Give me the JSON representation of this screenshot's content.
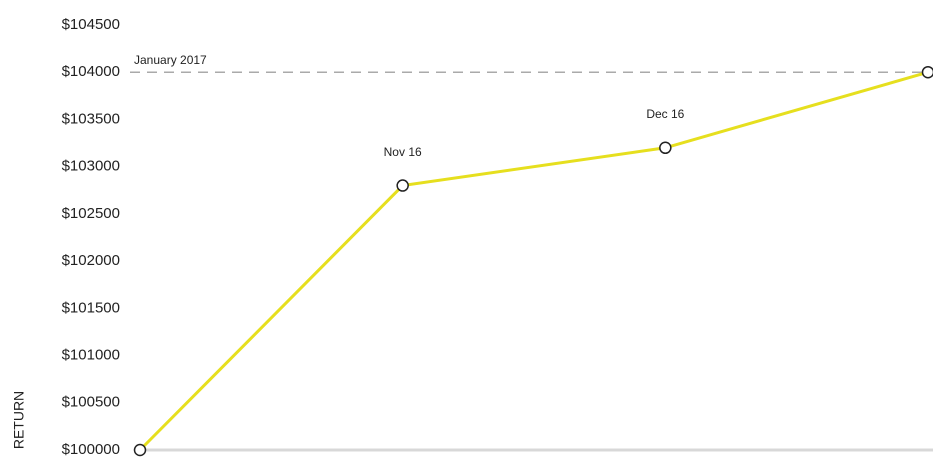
{
  "chart_data": {
    "type": "line",
    "y_label": "RETURN",
    "categories": [
      null,
      "Nov 16",
      "Dec 16",
      "January 2017"
    ],
    "series": [
      {
        "name": null,
        "color": "#e6df1e",
        "values": [
          100000,
          102800,
          103200,
          104000
        ]
      }
    ],
    "ylim": [
      100000,
      104500
    ],
    "yticks": [
      {
        "value": 100000,
        "label": "$100000"
      },
      {
        "value": 100500,
        "label": "$100500"
      },
      {
        "value": 101000,
        "label": "$101000"
      },
      {
        "value": 101500,
        "label": "$101500"
      },
      {
        "value": 102000,
        "label": "$102000"
      },
      {
        "value": 102500,
        "label": "$102500"
      },
      {
        "value": 103000,
        "label": "$103000"
      },
      {
        "value": 103500,
        "label": "$103500"
      },
      {
        "value": 104000,
        "label": "$104000"
      },
      {
        "value": 104500,
        "label": "$104500"
      }
    ]
  }
}
